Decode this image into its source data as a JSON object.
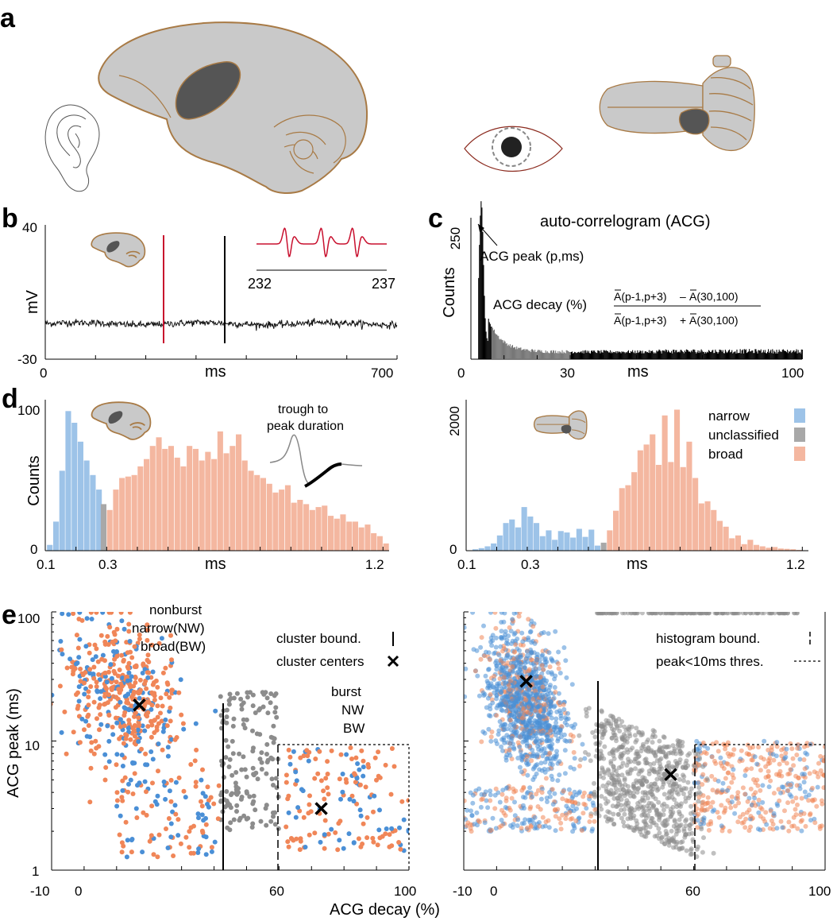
{
  "panel_labels": {
    "a": "a",
    "b": "b",
    "c": "c",
    "d": "d",
    "e": "e"
  },
  "colors": {
    "narrow": "#4a8fd6",
    "unclassified": "#8c8c8c",
    "broad": "#f08658",
    "narrow_hist": "#9dc3e8",
    "unclassified_hist": "#a8a8a8",
    "broad_hist": "#f4b7a0",
    "brain_fill": "#c9c9c9",
    "brain_stroke": "#a87a45",
    "brain_region": "#555555",
    "spike_red": "#c8102e"
  },
  "icons": [
    "ear-icon",
    "cortex-brain-icon",
    "eye-icon",
    "cerebellum-brain-icon"
  ],
  "chart_data": [
    {
      "id": "b",
      "type": "line",
      "xlabel": "ms",
      "ylabel": "mV",
      "xlim": [
        0,
        700
      ],
      "ylim": [
        -30,
        40
      ],
      "xticks": [
        "0",
        "700"
      ],
      "yticks": [
        "40",
        "-30"
      ],
      "spikes": [
        {
          "t": 232,
          "color": "red"
        },
        {
          "t": 356,
          "color": "black"
        }
      ],
      "inset": {
        "xticks": [
          "232",
          "237"
        ],
        "description": "spike waveform"
      }
    },
    {
      "id": "c",
      "type": "bar",
      "title": "auto-correlogram (ACG)",
      "xlabel": "ms",
      "ylabel": "Counts",
      "xlim": [
        0,
        100
      ],
      "ylim": [
        0,
        250
      ],
      "xticks": [
        "0",
        "30",
        "100"
      ],
      "yticks": [
        "250"
      ],
      "peak_ms": 3,
      "annotations": {
        "peak": "ACG peak (p,ms)",
        "decay": "ACG decay (%)",
        "decay_num_left": "A(p-1,p+3)",
        "decay_num_op": "–",
        "decay_num_right": "A(30,100)",
        "decay_den_left": "A(p-1,p+3)",
        "decay_den_op": "+",
        "decay_den_right": "A(30,100)"
      }
    },
    {
      "id": "d-left",
      "type": "bar",
      "xlabel": "ms",
      "ylabel": "Counts",
      "xlim": [
        0.1,
        1.22
      ],
      "ylim": [
        0,
        100
      ],
      "xticks": [
        "0.1",
        "0.3",
        "1.2"
      ],
      "yticks": [
        "100",
        "0"
      ],
      "inset_label_line1": "trough to",
      "inset_label_line2": "peak duration",
      "series": [
        {
          "name": "narrow",
          "x": [
            0.115,
            0.135,
            0.155,
            0.175,
            0.195,
            0.215,
            0.235,
            0.255,
            0.275
          ],
          "values": [
            4,
            20,
            55,
            96,
            88,
            75,
            62,
            52,
            42
          ]
        },
        {
          "name": "unclassified",
          "x": [
            0.29
          ],
          "values": [
            32
          ]
        },
        {
          "name": "broad",
          "x": [
            0.31,
            0.33,
            0.35,
            0.37,
            0.39,
            0.41,
            0.43,
            0.45,
            0.47,
            0.49,
            0.51,
            0.53,
            0.55,
            0.57,
            0.59,
            0.61,
            0.63,
            0.65,
            0.67,
            0.69,
            0.71,
            0.73,
            0.75,
            0.77,
            0.79,
            0.81,
            0.83,
            0.85,
            0.87,
            0.89,
            0.91,
            0.93,
            0.95,
            0.97,
            0.99,
            1.01,
            1.03,
            1.05,
            1.07,
            1.09,
            1.11,
            1.13,
            1.15,
            1.17,
            1.19,
            1.21
          ],
          "values": [
            28,
            42,
            50,
            51,
            52,
            58,
            63,
            72,
            78,
            70,
            72,
            64,
            58,
            72,
            70,
            62,
            68,
            63,
            82,
            67,
            72,
            80,
            62,
            55,
            52,
            50,
            46,
            40,
            42,
            45,
            33,
            35,
            32,
            28,
            30,
            31,
            24,
            22,
            25,
            20,
            20,
            16,
            18,
            12,
            10,
            5
          ]
        }
      ]
    },
    {
      "id": "d-right",
      "type": "bar",
      "xlabel": "ms",
      "ylabel": "",
      "xlim": [
        0.1,
        1.22
      ],
      "ylim": [
        0,
        2000
      ],
      "xticks": [
        "0.1",
        "0.3",
        "1.2"
      ],
      "yticks": [
        "2000",
        "0"
      ],
      "legend": [
        "narrow",
        "unclassified",
        "broad"
      ],
      "series": [
        {
          "name": "narrow",
          "x": [
            0.13,
            0.15,
            0.17,
            0.19,
            0.21,
            0.23,
            0.25,
            0.27,
            0.29,
            0.31,
            0.33,
            0.35,
            0.37,
            0.39,
            0.41,
            0.43,
            0.45,
            0.47,
            0.49,
            0.51,
            0.53
          ],
          "values": [
            20,
            35,
            60,
            100,
            210,
            380,
            430,
            320,
            600,
            470,
            380,
            200,
            280,
            150,
            270,
            250,
            180,
            300,
            190,
            290,
            70
          ]
        },
        {
          "name": "unclassified",
          "x": [
            0.55
          ],
          "values": [
            110
          ]
        },
        {
          "name": "broad",
          "x": [
            0.57,
            0.59,
            0.61,
            0.63,
            0.65,
            0.67,
            0.69,
            0.71,
            0.73,
            0.75,
            0.77,
            0.79,
            0.81,
            0.83,
            0.85,
            0.87,
            0.89,
            0.91,
            0.93,
            0.95,
            0.97,
            0.99,
            1.01,
            1.03,
            1.05,
            1.07,
            1.09,
            1.11,
            1.13,
            1.15,
            1.17,
            1.19
          ],
          "values": [
            280,
            550,
            860,
            900,
            1080,
            1380,
            1460,
            1600,
            1180,
            1860,
            1220,
            1940,
            1150,
            1500,
            1000,
            650,
            680,
            560,
            410,
            330,
            170,
            210,
            90,
            150,
            80,
            60,
            40,
            50,
            30,
            25,
            20,
            10
          ]
        }
      ]
    },
    {
      "id": "e-left",
      "type": "scatter",
      "xlabel": "ACG decay (%)",
      "ylabel": "ACG peak (ms)",
      "xlim": [
        -10,
        100
      ],
      "ylim": [
        1,
        100
      ],
      "yscale": "log",
      "xticks": [
        "-10",
        "0",
        "60",
        "100"
      ],
      "yticks": [
        "100",
        "10",
        "1"
      ],
      "cluster_boundary_x": 42,
      "histogram_boundary_x": 60,
      "peak_threshold_ms": 10,
      "cluster_centers": [
        {
          "x": 17,
          "y": 19
        },
        {
          "x": 73,
          "y": 3
        }
      ],
      "annotations": {
        "nonburst": "nonburst",
        "nonburst_nw": "narrow(NW)",
        "nonburst_bw": "broad(BW)",
        "burst": "burst",
        "burst_nw": "NW",
        "burst_bw": "BW",
        "legend_bound": "cluster bound.",
        "legend_centers": "cluster centers"
      }
    },
    {
      "id": "e-right",
      "type": "scatter",
      "xlabel": "",
      "ylabel": "",
      "xlim": [
        -10,
        100
      ],
      "ylim": [
        1,
        100
      ],
      "yscale": "log",
      "xticks": [
        "-10",
        "0",
        "60",
        "100"
      ],
      "cluster_boundary_x": 31,
      "histogram_boundary_x": 60,
      "peak_threshold_ms": 10,
      "cluster_centers": [
        {
          "x": 9,
          "y": 29
        },
        {
          "x": 53,
          "y": 5.5
        }
      ],
      "annotations": {
        "legend_hist": "histogram bound.",
        "legend_thres": "peak<10ms thres."
      }
    }
  ]
}
